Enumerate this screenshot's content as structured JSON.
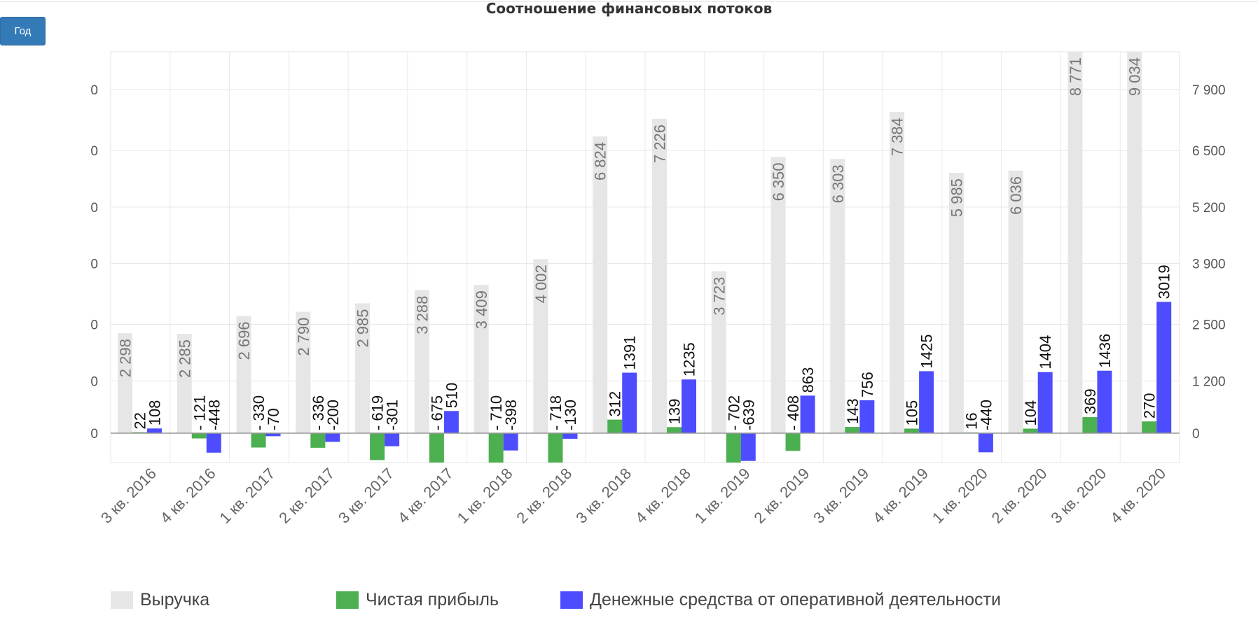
{
  "toolbar": {
    "period_label": "Год"
  },
  "legend_colors": {
    "revenue": "#e6e6e6",
    "profit": "#4caf50",
    "cash": "#4d4dff"
  },
  "chart_data": {
    "type": "bar",
    "title": "Соотношение финансовых потоков",
    "categories": [
      "3 кв. 2016",
      "4 кв. 2016",
      "1 кв. 2017",
      "2 кв. 2017",
      "3 кв. 2017",
      "4 кв. 2017",
      "1 кв. 2018",
      "2 кв. 2018",
      "3 кв. 2018",
      "4 кв. 2018",
      "1 кв. 2019",
      "2 кв. 2019",
      "3 кв. 2019",
      "4 кв. 2019",
      "1 кв. 2020",
      "2 кв. 2020",
      "3 кв. 2020",
      "4 кв. 2020"
    ],
    "series": [
      {
        "name": "Выручка",
        "axis": "right",
        "values": [
          2298,
          2285,
          2696,
          2790,
          2985,
          3288,
          3409,
          4002,
          6824,
          7226,
          3723,
          6350,
          6303,
          7384,
          5985,
          6036,
          8771,
          9034
        ],
        "labels": [
          "2 298",
          "2 285",
          "2 696",
          "2 790",
          "2 985",
          "3 288",
          "3 409",
          "4 002",
          "6 824",
          "7 226",
          "3 723",
          "6 350",
          "6 303",
          "7 384",
          "5 985",
          "6 036",
          "8 771",
          "9 034"
        ]
      },
      {
        "name": "Чистая прибыль",
        "axis": "left",
        "values": [
          22,
          -121,
          -330,
          -336,
          -619,
          -675,
          -710,
          -718,
          312,
          139,
          -702,
          -408,
          143,
          105,
          16,
          104,
          369,
          270
        ],
        "labels": [
          "22",
          "- 121",
          "- 330",
          "- 336",
          "- 619",
          "- 675",
          "- 710",
          "- 718",
          "312",
          "139",
          "- 702",
          "- 408",
          "143",
          "105",
          "16",
          "104",
          "369",
          "270"
        ]
      },
      {
        "name": "Денежные средства от оперативной деятельности",
        "axis": "left",
        "values": [
          108,
          -448,
          -70,
          -200,
          -301,
          510,
          -398,
          -130,
          1391,
          1235,
          -639,
          863,
          756,
          1425,
          -440,
          1404,
          1436,
          3019
        ],
        "labels": [
          "108",
          "-448",
          "-70",
          "-200",
          "-301",
          "510",
          "-398",
          "-130",
          "1391",
          "1235",
          "-639",
          "863",
          "756",
          "1425",
          "-440",
          "1404",
          "1436",
          "3019"
        ]
      }
    ],
    "right_axis": {
      "ticks": [
        0,
        1200,
        2500,
        3900,
        5200,
        6500,
        7900
      ],
      "tick_labels": [
        "0",
        "1 200",
        "2 500",
        "3 900",
        "5 200",
        "6 500",
        "7 900"
      ],
      "range": [
        -700,
        8900
      ]
    },
    "left_axis": {
      "tick_labels": [
        "0",
        "0",
        "0",
        "0",
        "0",
        "0",
        "0"
      ],
      "range": [
        -700,
        8900
      ]
    },
    "grid": true,
    "legend_position": "bottom-left"
  }
}
